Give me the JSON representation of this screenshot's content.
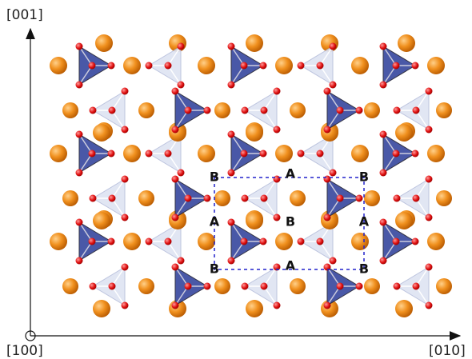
{
  "axes": {
    "vertical": "[001]",
    "origin": "[100]",
    "horizontal": "[010]"
  },
  "cell_labels": [
    "B",
    "A",
    "B",
    "A",
    "B",
    "A",
    "B",
    "A",
    "B"
  ]
}
